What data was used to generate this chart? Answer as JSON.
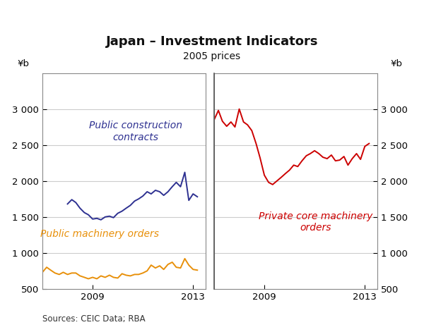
{
  "title": "Japan – Investment Indicators",
  "subtitle": "2005 prices",
  "ylabel_left": "¥b",
  "ylabel_right": "¥b",
  "source": "Sources: CEIC Data; RBA",
  "ylim": [
    500,
    3500
  ],
  "yticks": [
    500,
    1000,
    1500,
    2000,
    2500,
    3000
  ],
  "left_xticks": [
    2009,
    2013
  ],
  "right_xticks": [
    2009,
    2013
  ],
  "left_xlim": [
    2007.0,
    2013.5
  ],
  "right_xlim": [
    2007.0,
    2013.5
  ],
  "left_panel": {
    "public_construction": {
      "color": "#2e3191",
      "label": "Public construction\ncontracts",
      "x": [
        2008.0,
        2008.17,
        2008.33,
        2008.5,
        2008.67,
        2008.83,
        2009.0,
        2009.17,
        2009.33,
        2009.5,
        2009.67,
        2009.83,
        2010.0,
        2010.17,
        2010.33,
        2010.5,
        2010.67,
        2010.83,
        2011.0,
        2011.17,
        2011.33,
        2011.5,
        2011.67,
        2011.83,
        2012.0,
        2012.17,
        2012.33,
        2012.5,
        2012.67,
        2012.83,
        2013.0,
        2013.17
      ],
      "y": [
        1680,
        1740,
        1700,
        1620,
        1560,
        1530,
        1470,
        1480,
        1460,
        1500,
        1510,
        1490,
        1550,
        1580,
        1620,
        1660,
        1720,
        1750,
        1790,
        1850,
        1820,
        1870,
        1850,
        1800,
        1850,
        1920,
        1980,
        1920,
        2120,
        1730,
        1820,
        1780
      ]
    },
    "public_machinery": {
      "color": "#e8900a",
      "label": "Public machinery orders",
      "x": [
        2007.0,
        2007.17,
        2007.33,
        2007.5,
        2007.67,
        2007.83,
        2008.0,
        2008.17,
        2008.33,
        2008.5,
        2008.67,
        2008.83,
        2009.0,
        2009.17,
        2009.33,
        2009.5,
        2009.67,
        2009.83,
        2010.0,
        2010.17,
        2010.33,
        2010.5,
        2010.67,
        2010.83,
        2011.0,
        2011.17,
        2011.33,
        2011.5,
        2011.67,
        2011.83,
        2012.0,
        2012.17,
        2012.33,
        2012.5,
        2012.67,
        2012.83,
        2013.0,
        2013.17
      ],
      "y": [
        730,
        800,
        760,
        720,
        700,
        730,
        700,
        720,
        720,
        680,
        660,
        640,
        660,
        640,
        680,
        660,
        690,
        660,
        650,
        710,
        690,
        680,
        700,
        700,
        720,
        750,
        830,
        790,
        820,
        770,
        840,
        870,
        800,
        790,
        920,
        830,
        770,
        760
      ]
    }
  },
  "right_panel": {
    "private_machinery": {
      "color": "#cc0000",
      "label": "Private core machinery\norders",
      "x": [
        2007.0,
        2007.17,
        2007.33,
        2007.5,
        2007.67,
        2007.83,
        2008.0,
        2008.17,
        2008.33,
        2008.5,
        2008.67,
        2008.83,
        2009.0,
        2009.17,
        2009.33,
        2009.5,
        2009.67,
        2009.83,
        2010.0,
        2010.17,
        2010.33,
        2010.5,
        2010.67,
        2010.83,
        2011.0,
        2011.17,
        2011.33,
        2011.5,
        2011.67,
        2011.83,
        2012.0,
        2012.17,
        2012.33,
        2012.5,
        2012.67,
        2012.83,
        2013.0,
        2013.17
      ],
      "y": [
        2850,
        2980,
        2830,
        2760,
        2820,
        2750,
        3000,
        2820,
        2780,
        2700,
        2520,
        2320,
        2080,
        1980,
        1950,
        2000,
        2050,
        2100,
        2150,
        2220,
        2200,
        2280,
        2350,
        2380,
        2420,
        2380,
        2330,
        2310,
        2360,
        2280,
        2290,
        2340,
        2220,
        2310,
        2380,
        2300,
        2480,
        2520
      ]
    }
  },
  "background_color": "#ffffff",
  "grid_color": "#cccccc",
  "box_color": "#888888",
  "divider_color": "#555555",
  "annotation_fontsize": 10,
  "tick_fontsize": 9.5,
  "source_fontsize": 8.5
}
